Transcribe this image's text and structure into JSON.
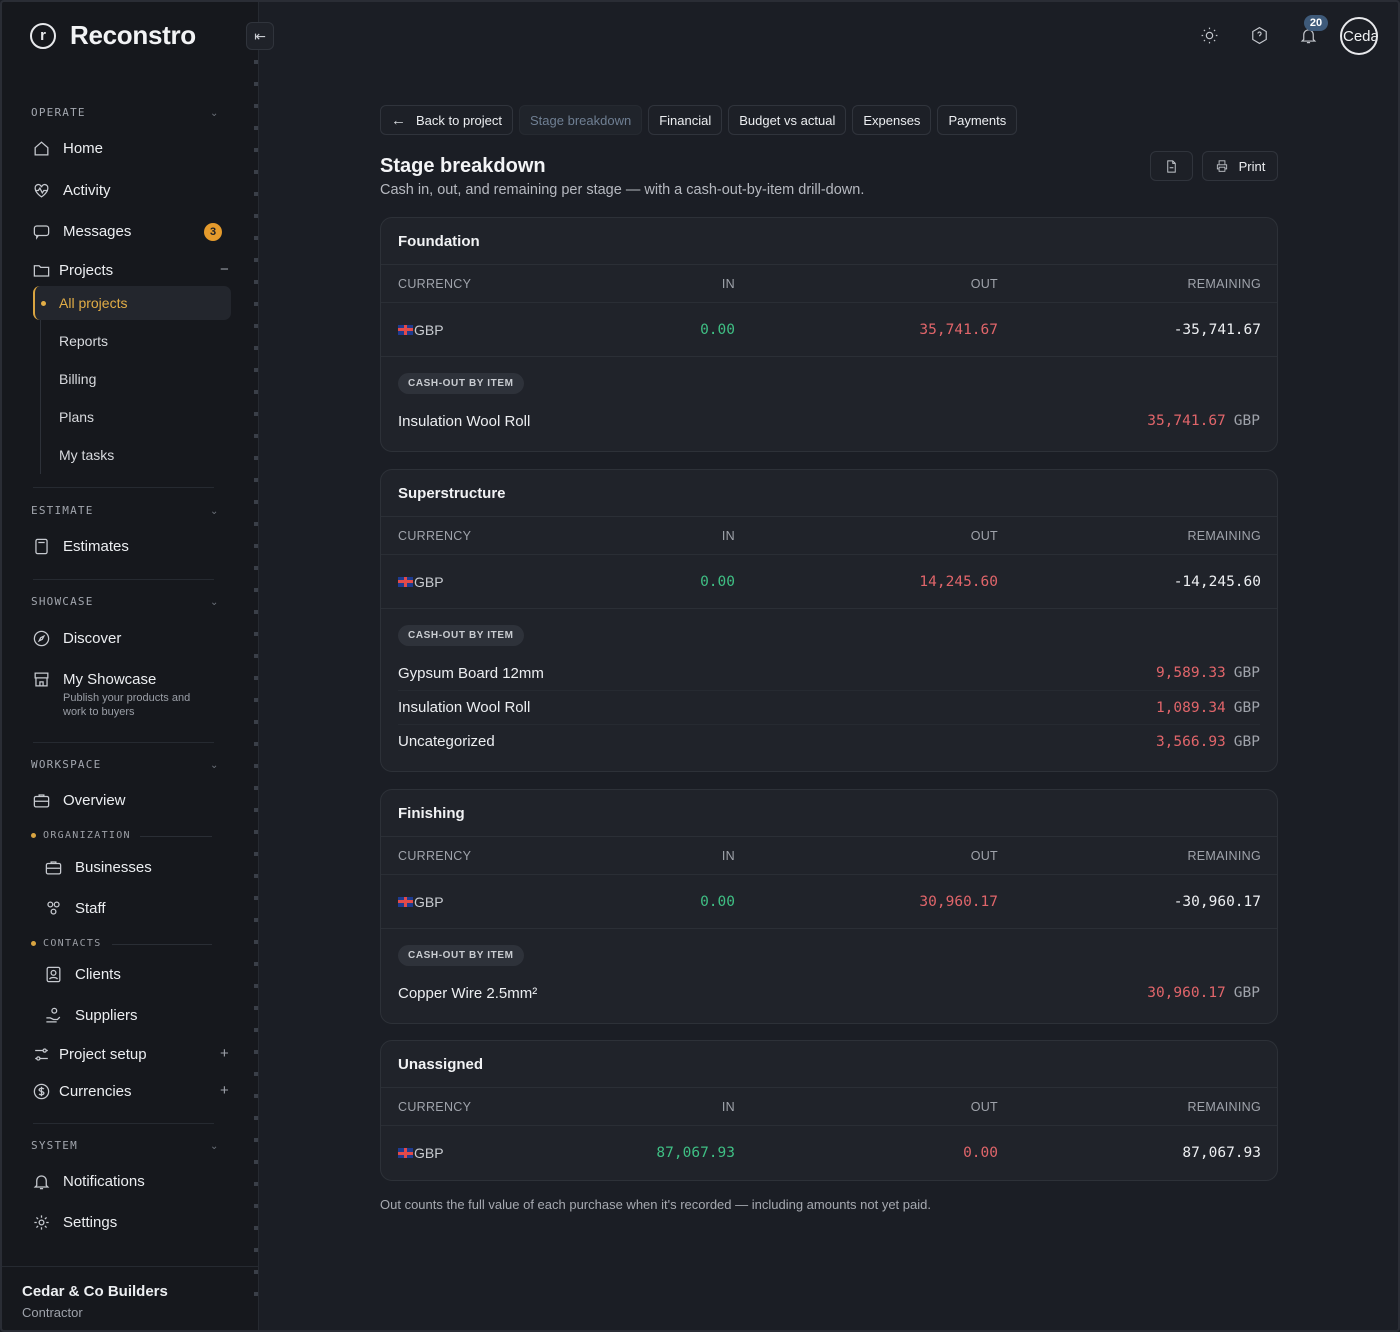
{
  "app": {
    "name": "Reconstro",
    "logo_letter": "r"
  },
  "sidebar": {
    "sections": {
      "operate": "OPERATE",
      "estimate": "ESTIMATE",
      "showcase": "SHOWCASE",
      "workspace": "WORKSPACE",
      "system": "SYSTEM"
    },
    "home": "Home",
    "activity": "Activity",
    "messages": "Messages",
    "messages_count": "3",
    "projects": "Projects",
    "projects_sub": {
      "all_projects": "All projects",
      "reports": "Reports",
      "billing": "Billing",
      "plans": "Plans",
      "my_tasks": "My tasks"
    },
    "estimates": "Estimates",
    "discover": "Discover",
    "my_showcase": "My Showcase",
    "my_showcase_sub": "Publish your products and work to buyers",
    "overview": "Overview",
    "organization_label": "ORGANIZATION",
    "businesses": "Businesses",
    "staff": "Staff",
    "contacts_label": "CONTACTS",
    "clients": "Clients",
    "suppliers": "Suppliers",
    "project_setup": "Project setup",
    "currencies": "Currencies",
    "notifications": "Notifications",
    "settings": "Settings",
    "org_name": "Cedar & Co Builders",
    "org_role": "Contractor"
  },
  "topbar": {
    "notif_count": "20",
    "avatar_text": "Ceda"
  },
  "tabs": {
    "back": "Back to project",
    "stage": "Stage breakdown",
    "financial": "Financial",
    "budget": "Budget vs actual",
    "expenses": "Expenses",
    "payments": "Payments"
  },
  "page": {
    "title": "Stage breakdown",
    "subtitle": "Cash in, out, and remaining per stage — with a cash-out-by-item drill-down.",
    "print": "Print",
    "footnote": "Out counts the full value of each purchase when it's recorded — including amounts not yet paid."
  },
  "table_headers": {
    "currency": "CURRENCY",
    "in": "IN",
    "out": "OUT",
    "remaining": "REMAINING"
  },
  "drill_label": "CASH-OUT BY ITEM",
  "stages": [
    {
      "name": "Foundation",
      "currency": "GBP",
      "in": "0.00",
      "out": "35,741.67",
      "remaining": "-35,741.67",
      "items": [
        {
          "name": "Insulation Wool Roll",
          "amount": "35,741.67",
          "currency": "GBP"
        }
      ]
    },
    {
      "name": "Superstructure",
      "currency": "GBP",
      "in": "0.00",
      "out": "14,245.60",
      "remaining": "-14,245.60",
      "items": [
        {
          "name": "Gypsum Board 12mm",
          "amount": "9,589.33",
          "currency": "GBP"
        },
        {
          "name": "Insulation Wool Roll",
          "amount": "1,089.34",
          "currency": "GBP"
        },
        {
          "name": "Uncategorized",
          "amount": "3,566.93",
          "currency": "GBP"
        }
      ]
    },
    {
      "name": "Finishing",
      "currency": "GBP",
      "in": "0.00",
      "out": "30,960.17",
      "remaining": "-30,960.17",
      "items": [
        {
          "name": "Copper Wire 2.5mm²",
          "amount": "30,960.17",
          "currency": "GBP"
        }
      ]
    },
    {
      "name": "Unassigned",
      "currency": "GBP",
      "in": "87,067.93",
      "out": "0.00",
      "remaining": "87,067.93",
      "items": []
    }
  ],
  "colors": {
    "accent": "#e2ad46",
    "positive": "#3fbf84",
    "negative": "#e0656a",
    "badge": "#e49a2c"
  }
}
